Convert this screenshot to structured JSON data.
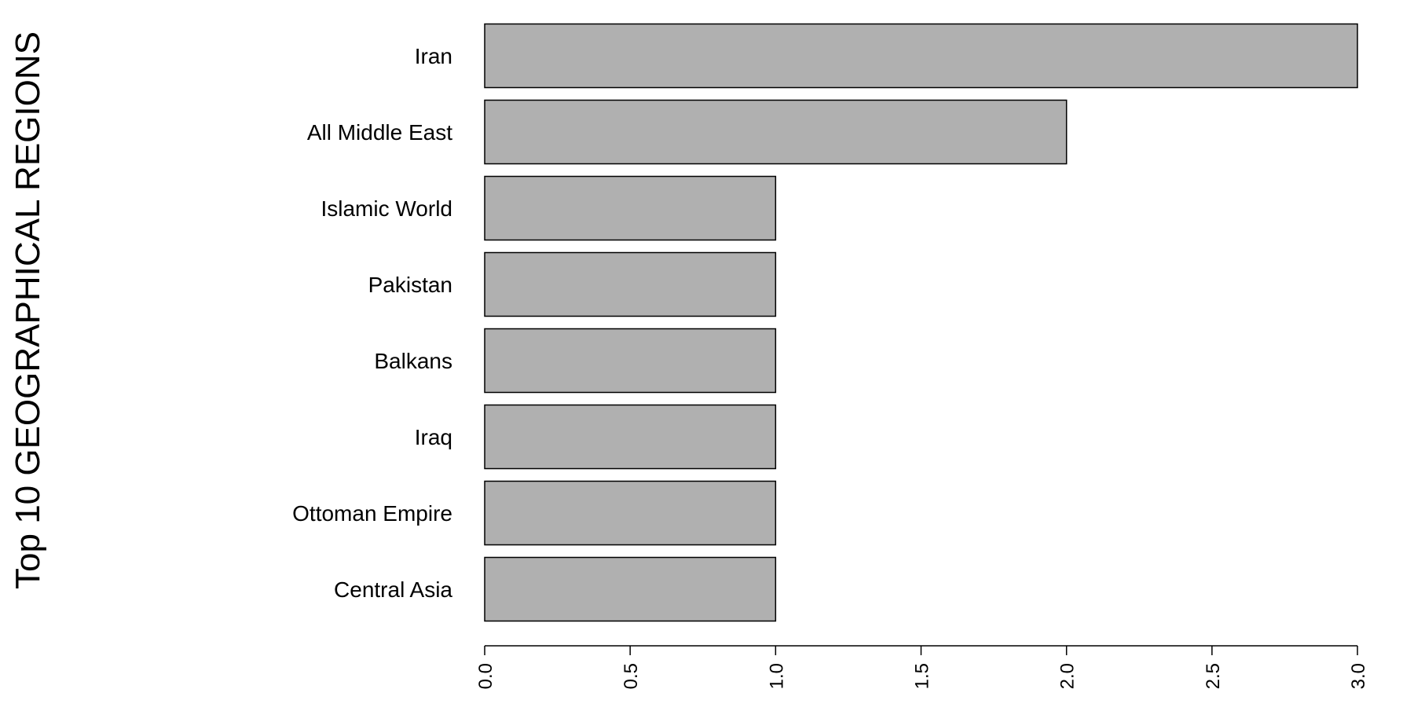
{
  "chart_data": {
    "type": "bar",
    "orientation": "horizontal",
    "ylabel": "Top 10 GEOGRAPHICAL REGIONS",
    "xlabel": "",
    "categories": [
      "Iran",
      "All Middle East",
      "Islamic World",
      "Pakistan",
      "Balkans",
      "Iraq",
      "Ottoman Empire",
      "Central Asia"
    ],
    "values": [
      3,
      2,
      1,
      1,
      1,
      1,
      1,
      1
    ],
    "xlim": [
      0,
      3
    ],
    "xticks": [
      "0.0",
      "0.5",
      "1.0",
      "1.5",
      "2.0",
      "2.5",
      "3.0"
    ],
    "grid": false,
    "colors": {
      "bar_fill": "#b0b0b0",
      "bar_stroke": "#000000"
    }
  }
}
